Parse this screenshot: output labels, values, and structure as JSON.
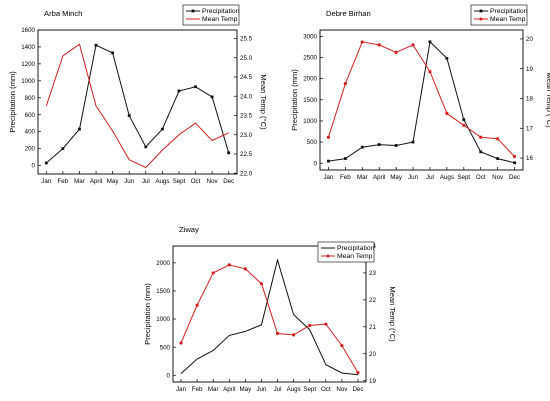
{
  "chart_data": [
    {
      "type": "line",
      "title": "Arba Minch",
      "categories": [
        "Jan",
        "Feb",
        "Mar",
        "April",
        "May",
        "Jun",
        "Jul",
        "Augs",
        "Sept",
        "Oct",
        "Nov",
        "Dec"
      ],
      "series": [
        {
          "name": "Precipitation",
          "axis": "left",
          "color": "#111111",
          "marker": "square",
          "values": [
            30,
            200,
            430,
            1420,
            1330,
            590,
            220,
            430,
            880,
            930,
            810,
            150
          ]
        },
        {
          "name": "Mean Temp",
          "axis": "right",
          "color": "#d42020",
          "marker": "none",
          "values": [
            23.75,
            25.05,
            25.35,
            23.75,
            23.1,
            22.35,
            22.15,
            22.6,
            23.0,
            23.3,
            22.85,
            23.05
          ]
        }
      ],
      "ylabel": "Precipitation (mm)",
      "y2label": "Mean Temp (°C)",
      "ylim": [
        -100,
        1600
      ],
      "y2lim": [
        21.98,
        25.72
      ],
      "yticks": [
        0,
        200,
        400,
        600,
        800,
        1000,
        1200,
        1400,
        1600
      ],
      "y2ticks": [
        22.0,
        22.5,
        23.0,
        23.5,
        24.0,
        24.5,
        25.0,
        25.5
      ],
      "legend": "top-right"
    },
    {
      "type": "line",
      "title": "Debre Birhan",
      "categories": [
        "Jan",
        "Feb",
        "Mar",
        "April",
        "May",
        "Jun",
        "Jul",
        "Augs",
        "Sept",
        "Oct",
        "Nov",
        "Dec"
      ],
      "series": [
        {
          "name": "Precipitation",
          "axis": "left",
          "color": "#111111",
          "marker": "square",
          "values": [
            50,
            110,
            380,
            440,
            420,
            500,
            2870,
            2480,
            1030,
            270,
            110,
            10
          ]
        },
        {
          "name": "Mean Temp",
          "axis": "right",
          "color": "#d42020",
          "marker": "dot",
          "values": [
            16.7,
            18.5,
            19.9,
            19.8,
            19.55,
            19.8,
            18.9,
            17.5,
            17.1,
            16.7,
            16.65,
            16.05
          ]
        }
      ],
      "ylabel": "Precipitation (mm)",
      "y2label": "Mean Temp (°C)",
      "ylim": [
        -160,
        3150
      ],
      "y2lim": [
        15.6,
        20.3
      ],
      "yticks": [
        0,
        500,
        1000,
        1500,
        2000,
        2500,
        3000
      ],
      "y2ticks": [
        16,
        17,
        18,
        19,
        20
      ],
      "legend": "top-right"
    },
    {
      "type": "line",
      "title": "Ziway",
      "categories": [
        "Jan",
        "Feb",
        "Mar",
        "April",
        "May",
        "Jun",
        "Jul",
        "Augs",
        "Sept",
        "Oct",
        "Nov",
        "Dec"
      ],
      "series": [
        {
          "name": "Precipitation",
          "axis": "left",
          "color": "#111111",
          "marker": "none",
          "values": [
            30,
            290,
            440,
            710,
            780,
            900,
            2050,
            1080,
            810,
            190,
            40,
            10
          ]
        },
        {
          "name": "Mean Temp",
          "axis": "right",
          "color": "#d42020",
          "marker": "dot",
          "values": [
            20.4,
            21.8,
            23.0,
            23.3,
            23.15,
            22.6,
            20.75,
            20.7,
            21.05,
            21.1,
            20.3,
            19.3
          ]
        }
      ],
      "ylabel": "Precipitation (mm)",
      "y2label": "Mean Temp (°C)",
      "ylim": [
        -120,
        2300
      ],
      "y2lim": [
        18.95,
        24.0
      ],
      "yticks": [
        0,
        500,
        1000,
        1500,
        2000
      ],
      "y2ticks": [
        19,
        20,
        21,
        22,
        23,
        24
      ],
      "legend": "top-right"
    }
  ]
}
